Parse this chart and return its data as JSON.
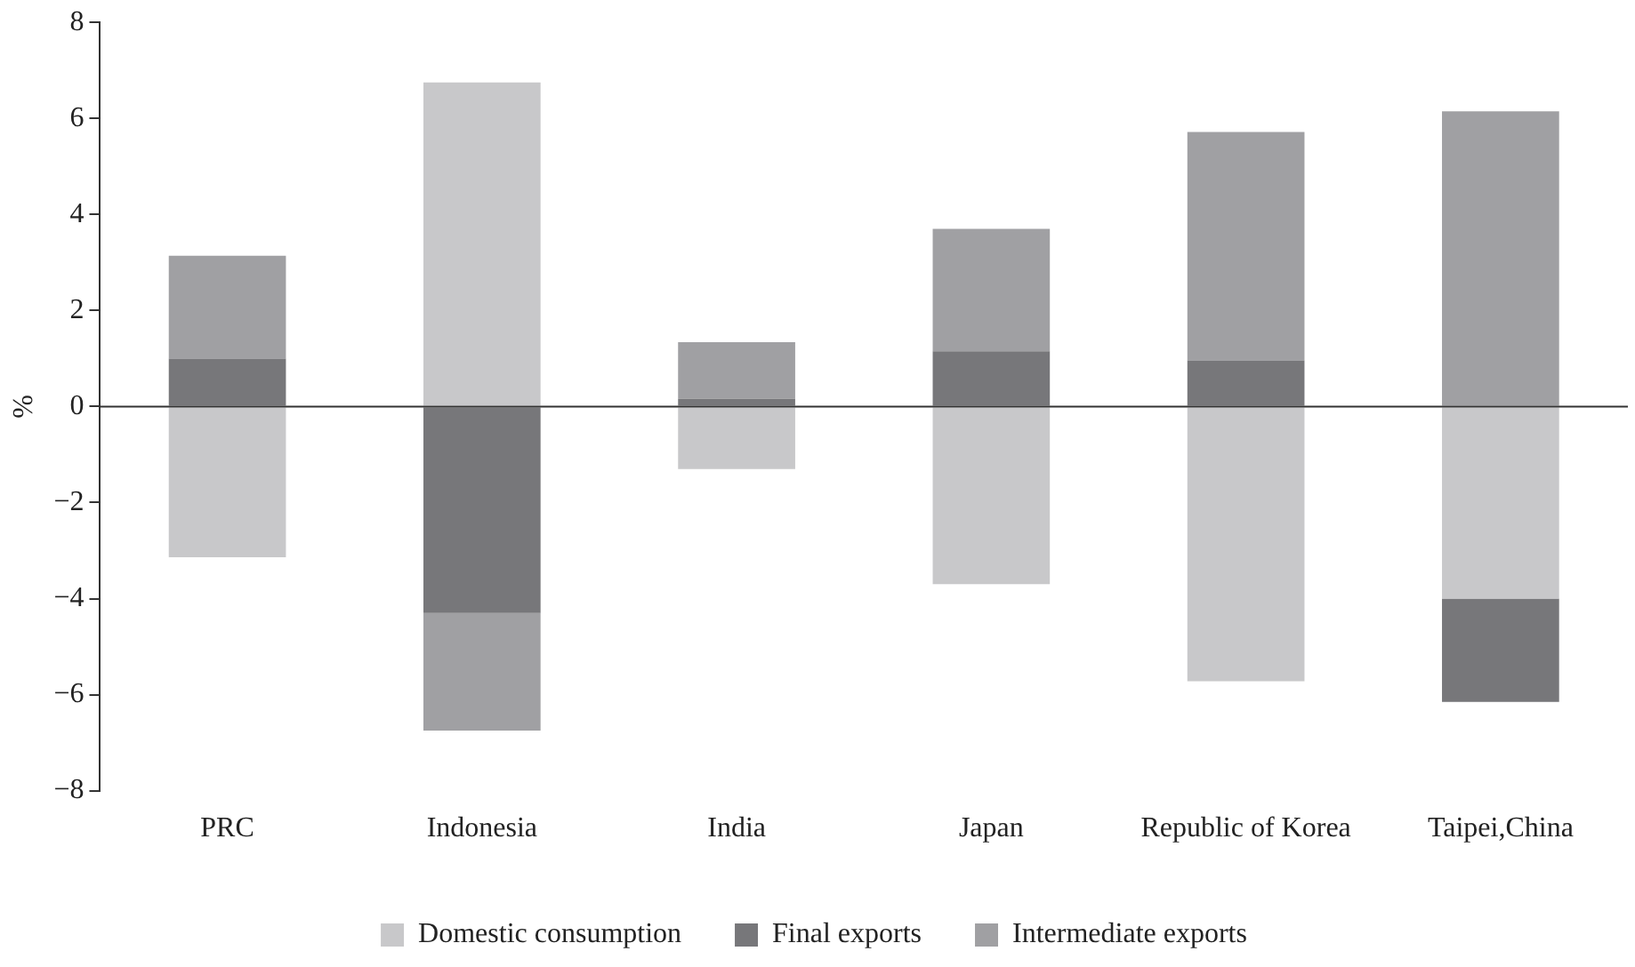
{
  "chart_data": {
    "type": "bar",
    "stacked": true,
    "ylabel": "%",
    "categories": [
      "PRC",
      "Indonesia",
      "India",
      "Japan",
      "Republic of Korea",
      "Taipei,China"
    ],
    "series": [
      {
        "name": "Domestic consumption",
        "color": "#c8c8ca",
        "values": [
          -3.14,
          6.75,
          -1.3,
          -3.7,
          -5.72,
          -4.0
        ]
      },
      {
        "name": "Final exports",
        "color": "#77777a",
        "values": [
          1.0,
          -4.3,
          0.16,
          1.15,
          0.96,
          -2.15
        ]
      },
      {
        "name": "Intermediate exports",
        "color": "#a0a0a3",
        "values": [
          2.14,
          -2.45,
          1.18,
          2.55,
          4.76,
          6.15
        ]
      }
    ],
    "ylim": [
      -8,
      8
    ],
    "yticks": [
      -8,
      -6,
      -4,
      -2,
      0,
      2,
      4,
      6,
      8
    ],
    "ref_lines": [
      {
        "axis": "y",
        "value": 0,
        "color": "#333333"
      }
    ],
    "grid": false,
    "legend": "bottom"
  }
}
